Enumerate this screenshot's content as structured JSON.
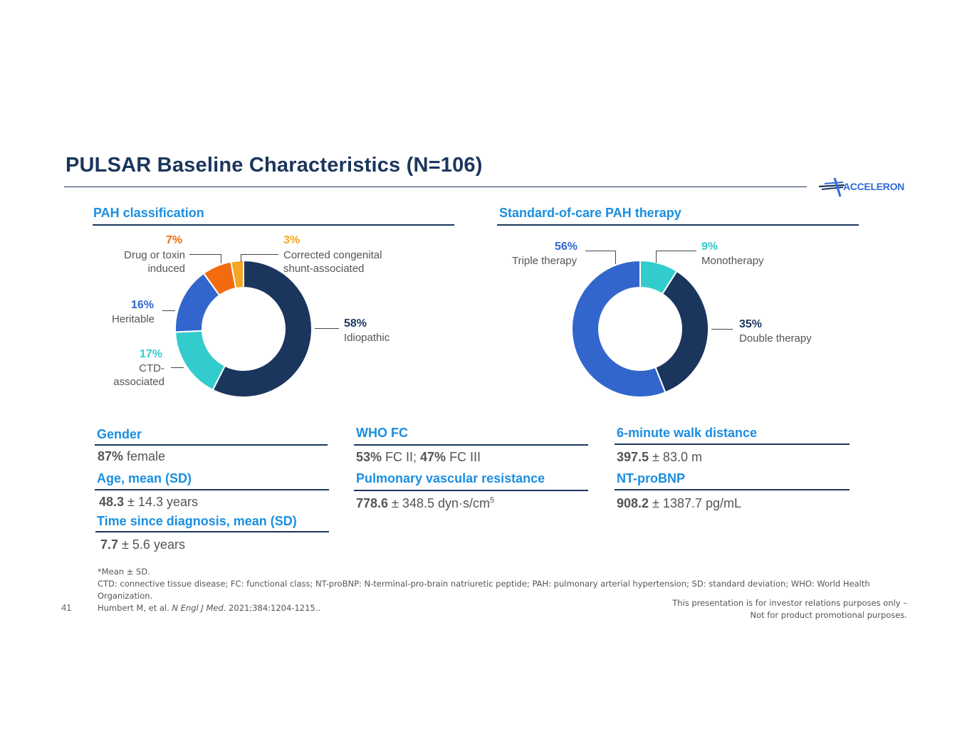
{
  "header": {
    "title": "PULSAR Baseline Characteristics (N=106)",
    "logo_text": "ACCELERON"
  },
  "sections": {
    "pah_title": "PAH classification",
    "soc_title": "Standard-of-care PAH therapy"
  },
  "chart_data": [
    {
      "type": "pie",
      "title": "PAH classification",
      "donut": true,
      "slices": [
        {
          "name": "Idiopathic",
          "label": "Idiopathic",
          "value": 58,
          "pct_text": "58%",
          "color": "#1b365d"
        },
        {
          "name": "CTD-associated",
          "label_line1": "CTD-",
          "label_line2": "associated",
          "value": 17,
          "pct_text": "17%",
          "color": "#33cccc"
        },
        {
          "name": "Heritable",
          "label": "Heritable",
          "value": 16,
          "pct_text": "16%",
          "color": "#3366cc"
        },
        {
          "name": "Drug or toxin induced",
          "label_line1": "Drug or toxin",
          "label_line2": "induced",
          "value": 7,
          "pct_text": "7%",
          "color": "#f26b0f"
        },
        {
          "name": "Corrected congenital shunt-associated",
          "label_line1": "Corrected congenital",
          "label_line2": "shunt-associated",
          "value": 3,
          "pct_text": "3%",
          "color": "#f5a623"
        }
      ]
    },
    {
      "type": "pie",
      "title": "Standard-of-care PAH therapy",
      "donut": true,
      "slices": [
        {
          "name": "Monotherapy",
          "label": "Monotherapy",
          "value": 9,
          "pct_text": "9%",
          "color": "#33cccc"
        },
        {
          "name": "Double therapy",
          "label": "Double therapy",
          "value": 35,
          "pct_text": "35%",
          "color": "#1b365d"
        },
        {
          "name": "Triple therapy",
          "label": "Triple therapy",
          "value": 56,
          "pct_text": "56%",
          "color": "#3366cc"
        }
      ]
    }
  ],
  "stats": {
    "gender": {
      "heading": "Gender",
      "bold": "87%",
      "rest": " female"
    },
    "age": {
      "heading": "Age, mean (SD)",
      "bold": "48.3",
      "rest": " ± 14.3 years"
    },
    "time": {
      "heading": "Time since diagnosis, mean (SD)",
      "bold": "7.7",
      "rest": " ± 5.6 years"
    },
    "who": {
      "heading": "WHO FC",
      "bold1": "53%",
      "mid": " FC II; ",
      "bold2": "47%",
      "rest": " FC III"
    },
    "pvr": {
      "heading": "Pulmonary vascular resistance",
      "bold": "778.6",
      "rest": " ± 348.5 dyn·s/cm",
      "sup": "5"
    },
    "walk": {
      "heading": "6-minute walk distance",
      "bold": "397.5",
      "rest": " ± 83.0 m"
    },
    "ntprobnp": {
      "heading": "NT-proBNP",
      "bold": "908.2",
      "rest": " ± 1387.7 pg/mL"
    }
  },
  "footnotes": {
    "line1": "*Mean ± SD.",
    "line2": "CTD: connective tissue disease; FC: functional class; NT-proBNP: N-terminal-pro-brain natriuretic peptide; PAH: pulmonary arterial hypertension; SD: standard deviation; WHO: World Health Organization.",
    "line3_pre": "Humbert M, et al. ",
    "line3_journal": "N Engl J Med",
    "line3_post": ". 2021;384:1204-1215.."
  },
  "page_number": "41",
  "disclaimer": {
    "line1": "This presentation is for investor relations purposes only –",
    "line2": "Not for product promotional purposes."
  }
}
